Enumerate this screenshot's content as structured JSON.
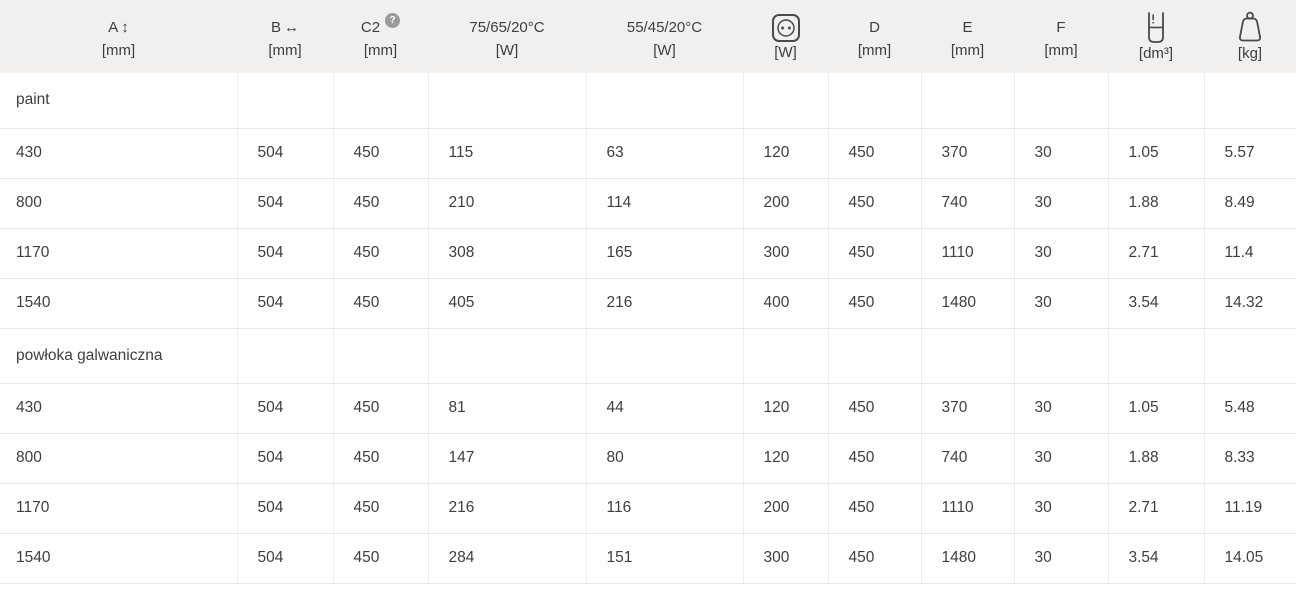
{
  "table": {
    "columns": [
      {
        "key": "a",
        "label": "A",
        "icon": "arrow-vertical",
        "unit": "[mm]"
      },
      {
        "key": "b",
        "label": "B",
        "icon": "arrow-horizontal",
        "unit": "[mm]"
      },
      {
        "key": "c2",
        "label": "C2",
        "icon": "help",
        "unit": "[mm]"
      },
      {
        "key": "t756520",
        "label": "75/65/20°C",
        "icon": "",
        "unit": "[W]"
      },
      {
        "key": "t554520",
        "label": "55/45/20°C",
        "icon": "",
        "unit": "[W]"
      },
      {
        "key": "electric",
        "label": "",
        "icon": "power-socket",
        "unit": "[W]"
      },
      {
        "key": "d",
        "label": "D",
        "icon": "",
        "unit": "[mm]"
      },
      {
        "key": "e",
        "label": "E",
        "icon": "",
        "unit": "[mm]"
      },
      {
        "key": "f",
        "label": "F",
        "icon": "",
        "unit": "[mm]"
      },
      {
        "key": "volume",
        "label": "",
        "icon": "water-volume",
        "unit": "[dm³]"
      },
      {
        "key": "weight",
        "label": "",
        "icon": "weight",
        "unit": "[kg]"
      }
    ],
    "sections": [
      {
        "title": "paint",
        "rows": [
          [
            "430",
            "504",
            "450",
            "115",
            "63",
            "120",
            "450",
            "370",
            "30",
            "1.05",
            "5.57"
          ],
          [
            "800",
            "504",
            "450",
            "210",
            "114",
            "200",
            "450",
            "740",
            "30",
            "1.88",
            "8.49"
          ],
          [
            "1170",
            "504",
            "450",
            "308",
            "165",
            "300",
            "450",
            "1110",
            "30",
            "2.71",
            "11.4"
          ],
          [
            "1540",
            "504",
            "450",
            "405",
            "216",
            "400",
            "450",
            "1480",
            "30",
            "3.54",
            "14.32"
          ]
        ]
      },
      {
        "title": "powłoka galwaniczna",
        "rows": [
          [
            "430",
            "504",
            "450",
            "81",
            "44",
            "120",
            "450",
            "370",
            "30",
            "1.05",
            "5.48"
          ],
          [
            "800",
            "504",
            "450",
            "147",
            "80",
            "120",
            "450",
            "740",
            "30",
            "1.88",
            "8.33"
          ],
          [
            "1170",
            "504",
            "450",
            "216",
            "116",
            "200",
            "450",
            "1110",
            "30",
            "2.71",
            "11.19"
          ],
          [
            "1540",
            "504",
            "450",
            "284",
            "151",
            "300",
            "450",
            "1480",
            "30",
            "3.54",
            "14.05"
          ]
        ]
      }
    ],
    "help_badge_glyph": "?"
  },
  "colors": {
    "header_background": "#f1f0ee",
    "text": "#3e3e3e",
    "row_border": "#e9e8e6",
    "column_border": "#efeeec",
    "help_badge_background": "#9b9b9b",
    "icon_stroke": "#4a4a4a"
  }
}
